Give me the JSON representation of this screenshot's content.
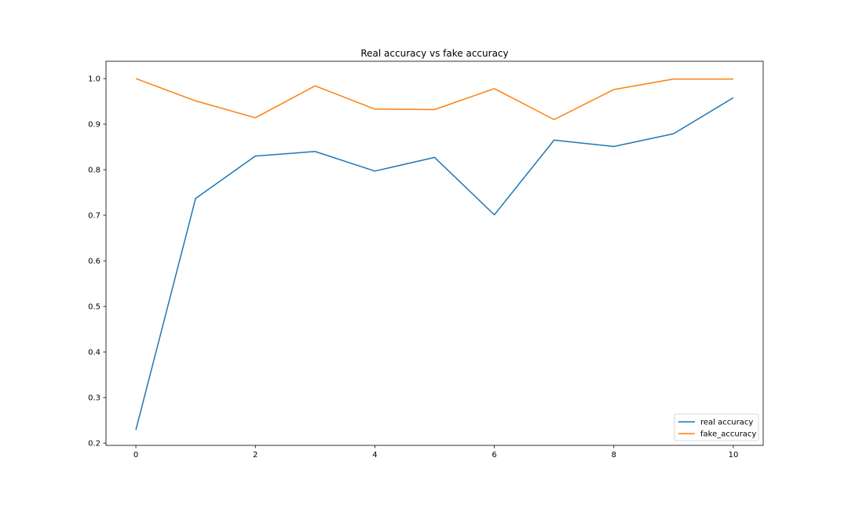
{
  "chart_data": {
    "type": "line",
    "title": "Real accuracy vs fake accuracy",
    "xlabel": "",
    "ylabel": "",
    "x": [
      0,
      1,
      2,
      3,
      4,
      5,
      6,
      7,
      8,
      9,
      10
    ],
    "xlim": [
      -0.5,
      10.5
    ],
    "ylim": [
      0.195,
      1.038
    ],
    "xticks": [
      0,
      2,
      4,
      6,
      8,
      10
    ],
    "yticks": [
      0.2,
      0.3,
      0.4,
      0.5,
      0.6,
      0.7,
      0.8,
      0.9,
      1.0
    ],
    "xtick_labels": [
      "0",
      "2",
      "4",
      "6",
      "8",
      "10"
    ],
    "ytick_labels": [
      "0.2",
      "0.3",
      "0.4",
      "0.5",
      "0.6",
      "0.7",
      "0.8",
      "0.9",
      "1.0"
    ],
    "grid": false,
    "legend_position": "lower right",
    "series": [
      {
        "name": "real accuracy",
        "color": "#1f77b4",
        "values": [
          0.229,
          0.737,
          0.83,
          0.84,
          0.797,
          0.827,
          0.701,
          0.865,
          0.851,
          0.879,
          0.958
        ]
      },
      {
        "name": "fake_accuracy",
        "color": "#ff7f0e",
        "values": [
          1.0,
          0.951,
          0.914,
          0.984,
          0.933,
          0.932,
          0.978,
          0.91,
          0.976,
          0.999,
          0.999
        ]
      }
    ]
  }
}
